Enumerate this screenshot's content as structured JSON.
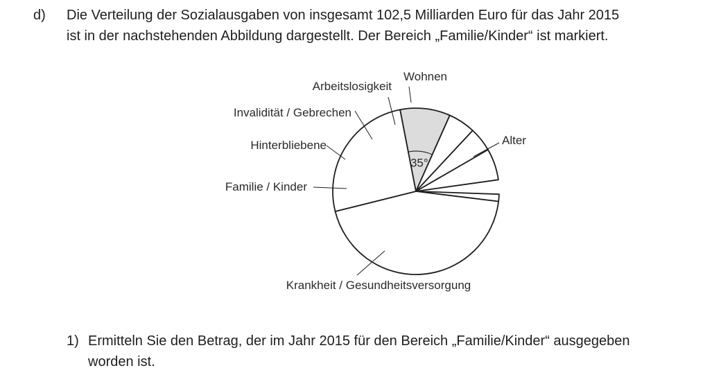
{
  "task": {
    "label": "d)",
    "intro_line1": "Die Verteilung der Sozialausgaben von insgesamt 102,5 Milliarden Euro für das Jahr 2015",
    "intro_line2": "ist in der nachstehenden Abbildung dargestellt. Der Bereich „Familie/Kinder“ ist markiert.",
    "question_label": "1)",
    "question_line1": "Ermitteln Sie den Betrag, der im Jahr 2015 für den Bereich „Familie/Kinder“ ausgegeben",
    "question_line2": "worden ist."
  },
  "chart_data": {
    "type": "pie",
    "title": "",
    "unit": "degrees",
    "slices": [
      {
        "label": "Wohnen",
        "angle": 5,
        "highlighted": false
      },
      {
        "label": "Alter",
        "angle": 159,
        "highlighted": false
      },
      {
        "label": "Krankheit / Gesundheitsversorgung",
        "angle": 93,
        "highlighted": false
      },
      {
        "label": "Familie / Kinder",
        "angle": 35,
        "highlighted": true,
        "annotation": "35°"
      },
      {
        "label": "Hinterbliebene",
        "angle": 19,
        "highlighted": false
      },
      {
        "label": "Invalidität / Gebrechen",
        "angle": 17,
        "highlighted": false
      },
      {
        "label": "Arbeitslosigkeit",
        "angle": 22,
        "highlighted": false
      }
    ],
    "colors": {
      "highlight": "#dcdcdc",
      "fill": "#ffffff",
      "stroke": "#1e1e1e"
    }
  }
}
